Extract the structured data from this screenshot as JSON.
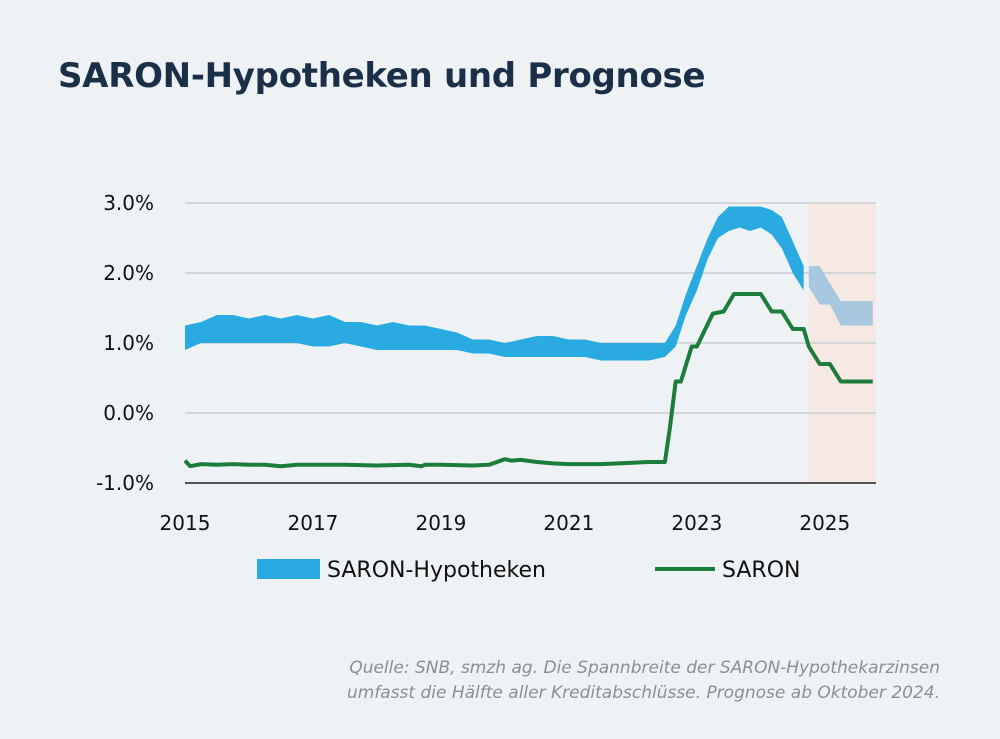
{
  "title": "SARON-Hypotheken und Prognose",
  "source": {
    "line1": "Quelle: SNB, smzh ag. Die Spannbreite der SARON-Hypothekarzinsen",
    "line2": "umfasst die Hälfte aller Kreditabschlüsse. Prognose ab Oktober 2024."
  },
  "colors": {
    "band": "#29abe2",
    "band_forecast": "#a8c8df",
    "saron": "#1c7c3c",
    "forecast_shade": "#f6e9e3",
    "grid": "#c9cdd2"
  },
  "chart_data": {
    "type": "area",
    "xlabel": "",
    "ylabel": "",
    "xlim": [
      2015,
      2025.8
    ],
    "ylim": [
      -1.0,
      3.0
    ],
    "y_ticks": [
      "3.0%",
      "2.0%",
      "1.0%",
      "0.0%",
      "-1.0%"
    ],
    "y_tick_values": [
      3.0,
      2.0,
      1.0,
      0.0,
      -1.0
    ],
    "x_ticks": [
      "2015",
      "2017",
      "2019",
      "2021",
      "2023",
      "2025"
    ],
    "x_tick_values": [
      2015,
      2017,
      2019,
      2021,
      2023,
      2025
    ],
    "forecast_start": 2024.75,
    "legend": [
      "SARON-Hypotheken",
      "SARON"
    ],
    "series": [
      {
        "name": "SARON-Hypotheken",
        "kind": "band",
        "x": [
          2015.0,
          2015.25,
          2015.5,
          2015.75,
          2016.0,
          2016.25,
          2016.5,
          2016.75,
          2017.0,
          2017.25,
          2017.5,
          2017.75,
          2018.0,
          2018.25,
          2018.5,
          2018.75,
          2019.0,
          2019.25,
          2019.5,
          2019.75,
          2020.0,
          2020.25,
          2020.5,
          2020.75,
          2021.0,
          2021.25,
          2021.5,
          2021.75,
          2022.0,
          2022.25,
          2022.5,
          2022.67,
          2022.83,
          2023.0,
          2023.17,
          2023.33,
          2023.5,
          2023.67,
          2023.83,
          2024.0,
          2024.17,
          2024.33,
          2024.5,
          2024.67
        ],
        "low": [
          0.9,
          1.0,
          1.0,
          1.0,
          1.0,
          1.0,
          1.0,
          1.0,
          0.95,
          0.95,
          1.0,
          0.95,
          0.9,
          0.9,
          0.9,
          0.9,
          0.9,
          0.9,
          0.85,
          0.85,
          0.8,
          0.8,
          0.8,
          0.8,
          0.8,
          0.8,
          0.75,
          0.75,
          0.75,
          0.75,
          0.8,
          0.95,
          1.4,
          1.75,
          2.2,
          2.5,
          2.6,
          2.65,
          2.6,
          2.65,
          2.55,
          2.35,
          2.0,
          1.75
        ],
        "high": [
          1.25,
          1.3,
          1.4,
          1.4,
          1.35,
          1.4,
          1.35,
          1.4,
          1.35,
          1.4,
          1.3,
          1.3,
          1.25,
          1.3,
          1.25,
          1.25,
          1.2,
          1.15,
          1.05,
          1.05,
          1.0,
          1.05,
          1.1,
          1.1,
          1.05,
          1.05,
          1.0,
          1.0,
          1.0,
          1.0,
          1.0,
          1.25,
          1.7,
          2.1,
          2.5,
          2.8,
          2.95,
          2.95,
          2.95,
          2.95,
          2.9,
          2.8,
          2.45,
          2.1
        ]
      },
      {
        "name": "SARON-Hypotheken Prognose",
        "kind": "band_forecast",
        "x": [
          2024.75,
          2024.92,
          2025.08,
          2025.25,
          2025.42,
          2025.58,
          2025.75
        ],
        "low": [
          1.8,
          1.55,
          1.55,
          1.25,
          1.25,
          1.25,
          1.25
        ],
        "high": [
          2.1,
          2.1,
          1.85,
          1.6,
          1.6,
          1.6,
          1.6
        ]
      },
      {
        "name": "SARON",
        "kind": "line",
        "x": [
          2015.0,
          2015.08,
          2015.25,
          2015.5,
          2015.75,
          2016.0,
          2016.25,
          2016.5,
          2016.75,
          2017.0,
          2017.5,
          2018.0,
          2018.5,
          2018.7,
          2018.75,
          2019.0,
          2019.5,
          2019.75,
          2020.0,
          2020.1,
          2020.25,
          2020.5,
          2020.75,
          2021.0,
          2021.5,
          2022.0,
          2022.25,
          2022.5,
          2022.58,
          2022.67,
          2022.75,
          2022.92,
          2023.0,
          2023.25,
          2023.42,
          2023.58,
          2023.75,
          2024.0,
          2024.17,
          2024.33,
          2024.5,
          2024.67,
          2024.75,
          2024.92,
          2025.08,
          2025.25,
          2025.42,
          2025.58,
          2025.75
        ],
        "y": [
          -0.68,
          -0.76,
          -0.73,
          -0.74,
          -0.73,
          -0.74,
          -0.74,
          -0.76,
          -0.74,
          -0.74,
          -0.74,
          -0.75,
          -0.74,
          -0.76,
          -0.74,
          -0.74,
          -0.75,
          -0.74,
          -0.66,
          -0.68,
          -0.67,
          -0.7,
          -0.72,
          -0.73,
          -0.73,
          -0.71,
          -0.7,
          -0.7,
          -0.2,
          0.45,
          0.45,
          0.95,
          0.95,
          1.42,
          1.45,
          1.7,
          1.7,
          1.7,
          1.45,
          1.45,
          1.2,
          1.2,
          0.95,
          0.7,
          0.7,
          0.45,
          0.45,
          0.45,
          0.45
        ]
      }
    ]
  }
}
